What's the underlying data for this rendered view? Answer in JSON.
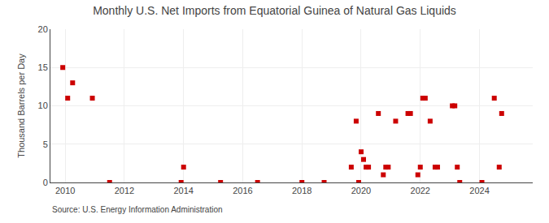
{
  "chart_data": {
    "type": "scatter",
    "title": "Monthly U.S. Net Imports from Equatorial Guinea of Natural Gas Liquids",
    "ylabel": "Thousand Barrels per Day",
    "annotations": [
      "Source: U.S. Energy Information Administration"
    ],
    "x": [
      2009.917,
      2010.083,
      2010.25,
      2010.917,
      2011.5,
      2013.917,
      2014.0,
      2015.25,
      2016.5,
      2018.0,
      2018.75,
      2019.667,
      2019.833,
      2019.917,
      2020.0,
      2020.083,
      2020.167,
      2020.25,
      2020.583,
      2020.75,
      2020.833,
      2020.917,
      2021.167,
      2021.583,
      2021.667,
      2021.917,
      2022.0,
      2022.083,
      2022.167,
      2022.333,
      2022.5,
      2022.583,
      2023.083,
      2023.167,
      2023.25,
      2023.333,
      2024.083,
      2024.5,
      2024.667,
      2024.75
    ],
    "values": [
      15,
      11,
      13,
      11,
      0,
      0,
      2,
      0,
      0,
      0,
      0,
      2,
      8,
      0,
      4,
      3,
      2,
      2,
      9,
      1,
      2,
      2,
      8,
      9,
      9,
      1,
      2,
      11,
      11,
      8,
      2,
      2,
      10,
      10,
      2,
      0,
      0,
      11,
      2,
      9
    ],
    "color": "#cc0000",
    "marker": "square",
    "xlim": [
      2009.5,
      2025.8
    ],
    "xticks": [
      2010,
      2012,
      2014,
      2016,
      2018,
      2020,
      2022,
      2024
    ],
    "ylim": [
      0,
      20
    ],
    "yticks": [
      0,
      5,
      10,
      15,
      20
    ],
    "grid": true
  }
}
